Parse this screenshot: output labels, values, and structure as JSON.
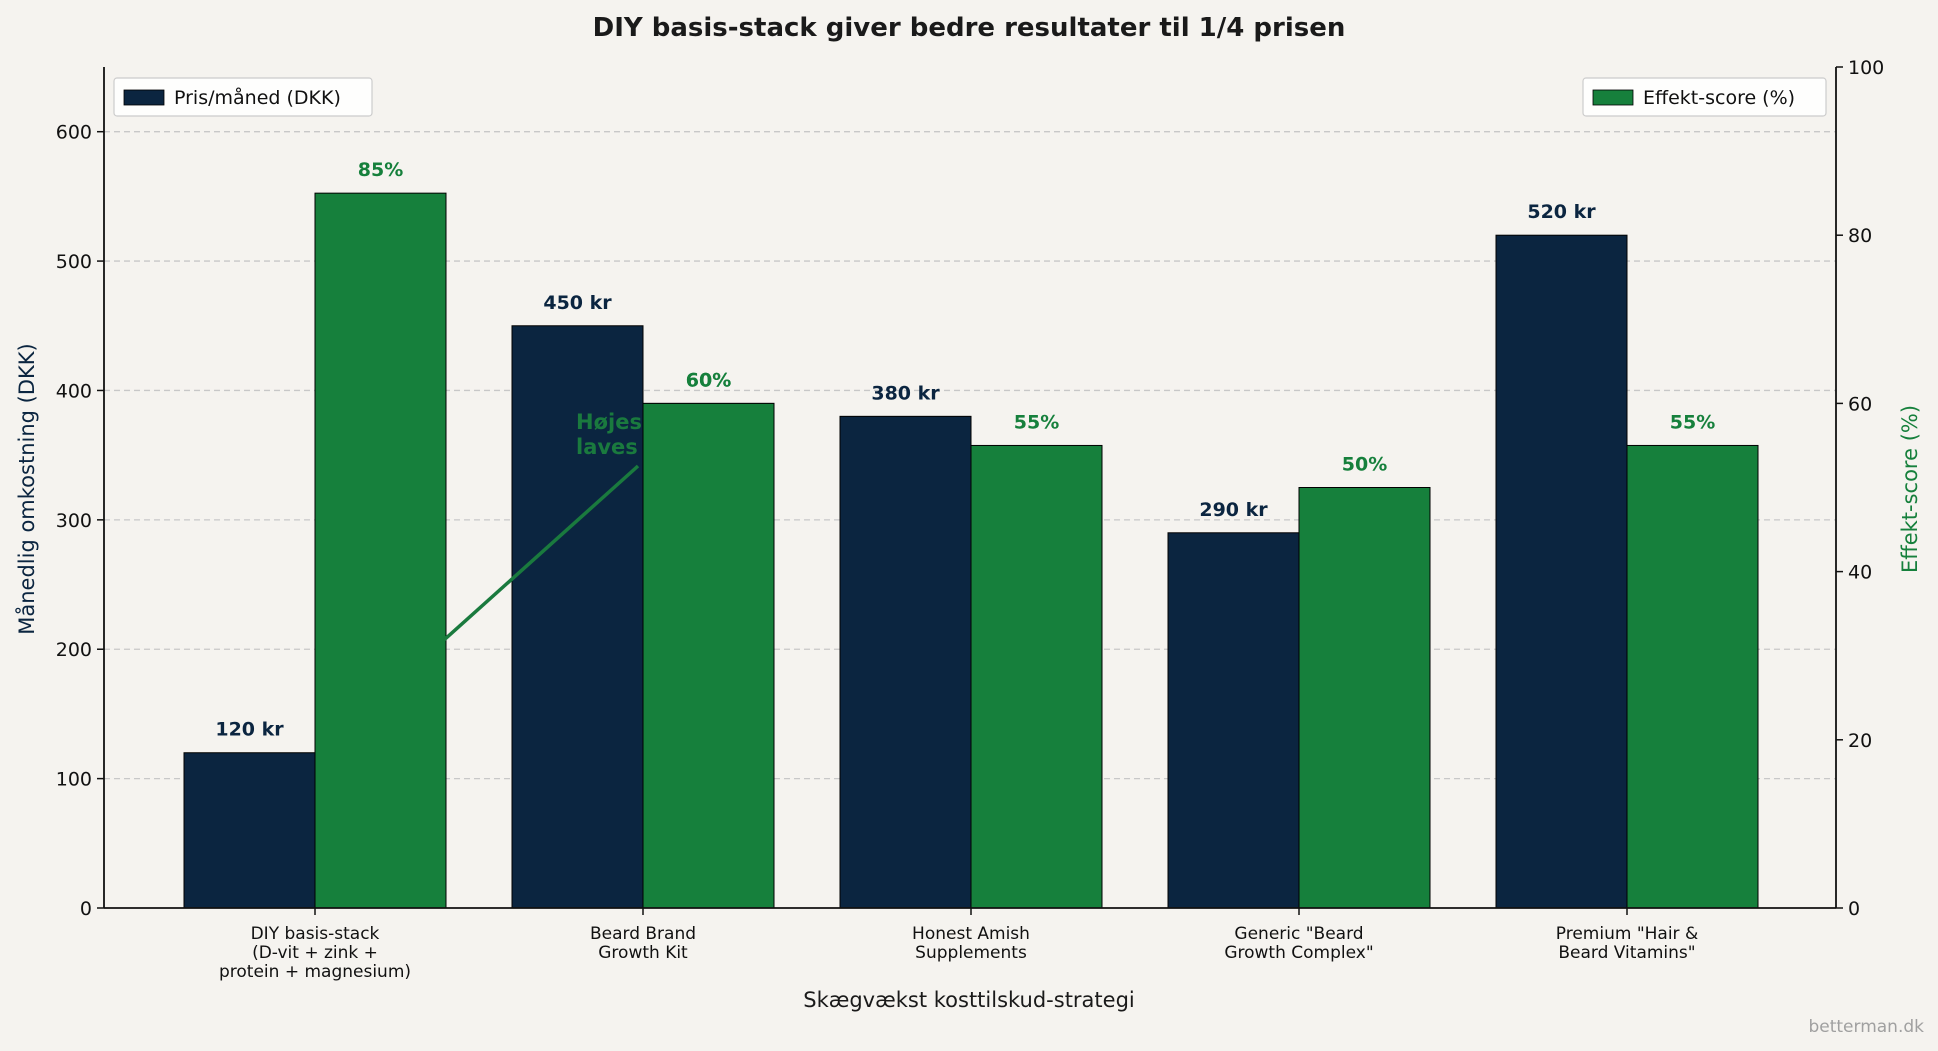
{
  "chart_data": {
    "type": "bar",
    "title": "DIY basis-stack giver bedre resultater til 1/4 prisen",
    "xlabel": "Skægvækst kosttilskud-strategi",
    "ylabel_left": "Månedlig omkostning (DKK)",
    "ylabel_right": "Effekt-score (%)",
    "categories": [
      [
        "DIY basis-stack",
        "(D-vit + zink +",
        "protein + magnesium)"
      ],
      [
        "Beard Brand",
        "Growth Kit"
      ],
      [
        "Honest Amish",
        "Supplements"
      ],
      [
        "Generic \"Beard",
        "Growth Complex\""
      ],
      [
        "Premium \"Hair &",
        "Beard Vitamins\""
      ]
    ],
    "series": [
      {
        "name": "Pris/måned (DKK)",
        "axis": "left",
        "color": "#0b2540",
        "values": [
          120,
          450,
          380,
          290,
          520
        ],
        "labels": [
          "120 kr",
          "450 kr",
          "380 kr",
          "290 kr",
          "520 kr"
        ]
      },
      {
        "name": "Effekt-score (%)",
        "axis": "right",
        "color": "#16803c",
        "values": [
          85,
          60,
          55,
          50,
          55
        ],
        "labels": [
          "85%",
          "60%",
          "55%",
          "50%",
          "55%"
        ]
      }
    ],
    "ylim_left": [
      0,
      650
    ],
    "yticks_left": [
      "0",
      "100",
      "200",
      "300",
      "400",
      "500",
      "600"
    ],
    "ylim_right": [
      0,
      100
    ],
    "yticks_right": [
      "0",
      "20",
      "40",
      "60",
      "80",
      "100"
    ],
    "grid": "horizontal dashed",
    "legend_left": "top-left",
    "legend_right": "top-right",
    "annotation": {
      "lines": [
        "Højes",
        "laves"
      ],
      "color": "#1a7a3e"
    },
    "watermark": "betterman.dk"
  }
}
